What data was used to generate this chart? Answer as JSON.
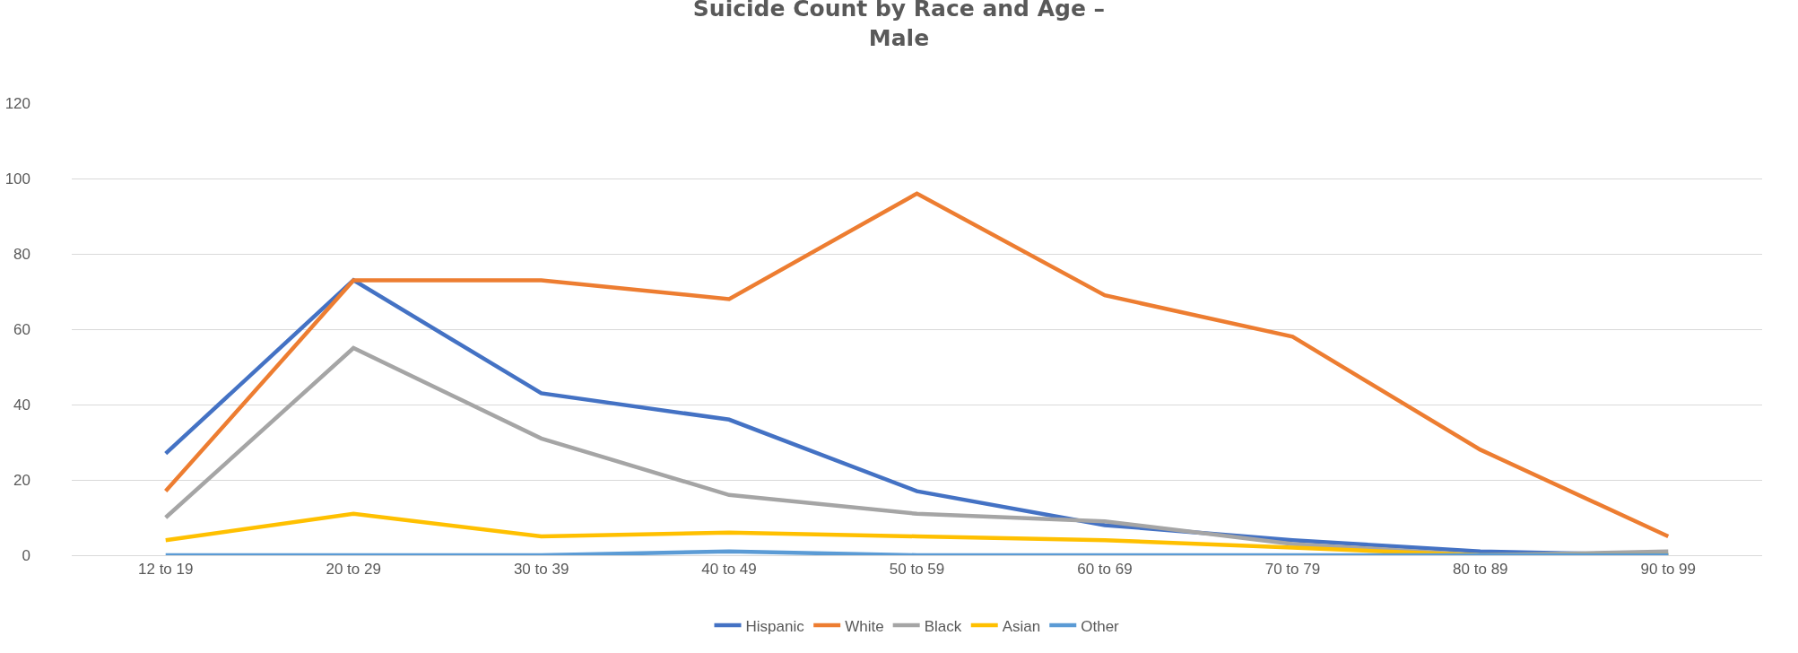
{
  "chart_data": {
    "type": "line",
    "title": "Suicide Count by Race and Age –\nMale",
    "categories": [
      "12 to 19",
      "20 to 29",
      "30 to 39",
      "40 to 49",
      "50 to 59",
      "60 to 69",
      "70 to 79",
      "80 to 89",
      "90 to 99"
    ],
    "series": [
      {
        "name": "Hispanic",
        "color": "#4472c4",
        "values": [
          27,
          73,
          43,
          36,
          17,
          8,
          4,
          1,
          0
        ]
      },
      {
        "name": "White",
        "color": "#ed7d31",
        "values": [
          17,
          73,
          73,
          68,
          96,
          69,
          58,
          28,
          5
        ]
      },
      {
        "name": "Black",
        "color": "#a5a5a5",
        "values": [
          10,
          55,
          31,
          16,
          11,
          9,
          3,
          0,
          1
        ]
      },
      {
        "name": "Asian",
        "color": "#ffc000",
        "values": [
          4,
          11,
          5,
          6,
          5,
          4,
          2,
          0,
          0
        ]
      },
      {
        "name": "Other",
        "color": "#5b9bd5",
        "values": [
          0,
          0,
          0,
          1,
          0,
          0,
          0,
          0,
          0
        ]
      }
    ],
    "ylim": [
      0,
      120
    ],
    "yticks": [
      0,
      20,
      40,
      60,
      80,
      100,
      120
    ],
    "grid": "y",
    "legend": "bottom",
    "marker": "none",
    "line_style": "solid"
  }
}
